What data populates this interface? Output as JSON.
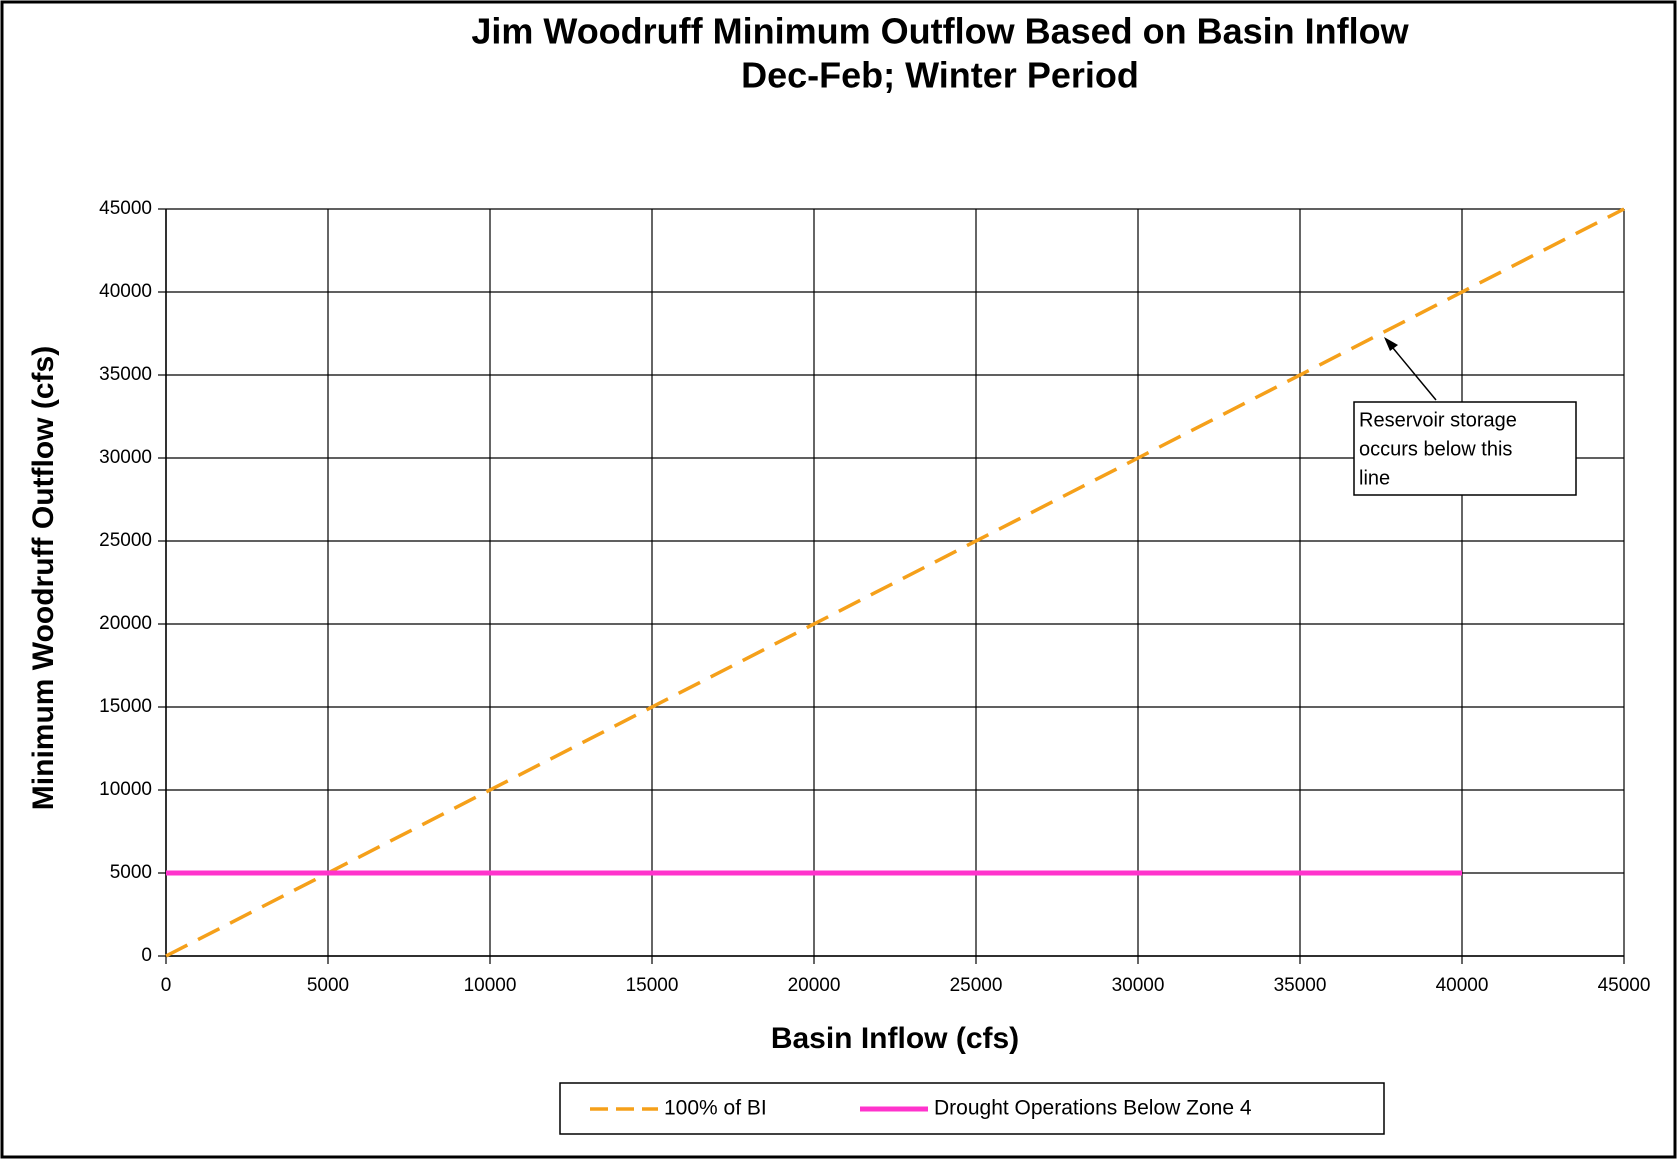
{
  "chart_data": {
    "type": "line",
    "title": "Jim Woodruff Minimum Outflow Based on Basin Inflow",
    "subtitle": "Dec-Feb; Winter Period",
    "x_label": "Basin Inflow (cfs)",
    "y_label": "Minimum  Woodruff  Outflow  (cfs)",
    "xlim": [
      0,
      45000
    ],
    "xticks": [
      0,
      5000,
      10000,
      15000,
      20000,
      25000,
      30000,
      35000,
      40000,
      45000
    ],
    "ylim": [
      0,
      45000
    ],
    "yticks": [
      0,
      5000,
      10000,
      15000,
      20000,
      25000,
      30000,
      35000,
      40000,
      45000
    ],
    "grid": true,
    "legend": "bottom",
    "series": [
      {
        "name": "100% of BI",
        "color": "#f5a01a",
        "dashed": true,
        "x": [
          0,
          45000
        ],
        "values": [
          0,
          45000
        ]
      },
      {
        "name": "Drought Operations Below Zone 4",
        "color": "#ff33cc",
        "dashed": false,
        "x": [
          0,
          40000
        ],
        "values": [
          5000,
          5000
        ]
      }
    ],
    "annotation": {
      "lines": [
        "Reservoir storage",
        "occurs below this",
        "line"
      ]
    }
  }
}
